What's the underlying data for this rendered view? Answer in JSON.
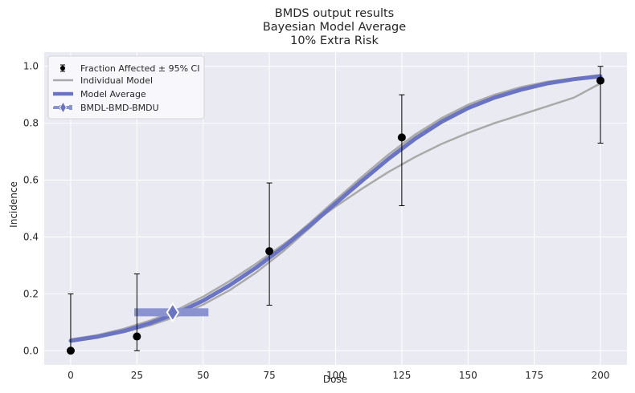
{
  "chart_data": {
    "type": "line",
    "title": [
      "BMDS output results",
      "Bayesian Model Average",
      "10% Extra Risk"
    ],
    "xlabel": "Dose",
    "ylabel": "Incidence",
    "xlim": [
      -10,
      210
    ],
    "ylim": [
      -0.05,
      1.05
    ],
    "xticks": [
      0,
      25,
      50,
      75,
      100,
      125,
      150,
      175,
      200
    ],
    "yticks": [
      0.0,
      0.2,
      0.4,
      0.6,
      0.8,
      1.0
    ],
    "grid": true,
    "legend_position": "top-left",
    "legend": [
      "Fraction Affected ± 95% CI",
      "Individual Model",
      "Model Average",
      "BMDL-BMD-BMDU"
    ],
    "colors": {
      "background": "#eaeaf2",
      "grid": "#ffffff",
      "individual_model": "#aaaaaa",
      "model_average": "#6a74c2",
      "bmd_band": "#8a93d0",
      "points": "#000000"
    },
    "observed": {
      "name": "Fraction Affected ± 95% CI",
      "dose": [
        0,
        25,
        75,
        125,
        200
      ],
      "fraction": [
        0.0,
        0.05,
        0.35,
        0.75,
        0.95
      ],
      "ci_lower": [
        0.0,
        0.0,
        0.16,
        0.51,
        0.73
      ],
      "ci_upper": [
        0.2,
        0.27,
        0.59,
        0.9,
        1.0
      ]
    },
    "individual_models": [
      {
        "x": [
          0,
          10,
          20,
          30,
          40,
          50,
          60,
          70,
          80,
          90,
          100,
          110,
          120,
          130,
          140,
          150,
          160,
          170,
          180,
          190,
          200
        ],
        "y": [
          0.04,
          0.055,
          0.077,
          0.106,
          0.143,
          0.19,
          0.245,
          0.306,
          0.372,
          0.44,
          0.507,
          0.57,
          0.629,
          0.681,
          0.727,
          0.766,
          0.8,
          0.83,
          0.86,
          0.89,
          0.94
        ]
      },
      {
        "x": [
          0,
          10,
          20,
          30,
          40,
          50,
          60,
          70,
          80,
          90,
          100,
          110,
          120,
          130,
          140,
          150,
          160,
          170,
          180,
          190,
          200
        ],
        "y": [
          0.035,
          0.049,
          0.069,
          0.095,
          0.13,
          0.175,
          0.23,
          0.295,
          0.368,
          0.447,
          0.53,
          0.612,
          0.69,
          0.76,
          0.818,
          0.865,
          0.9,
          0.927,
          0.946,
          0.958,
          0.97
        ]
      },
      {
        "x": [
          0,
          10,
          20,
          30,
          40,
          50,
          60,
          70,
          80,
          90,
          100,
          110,
          120,
          130,
          140,
          150,
          160,
          170,
          180,
          190,
          200
        ],
        "y": [
          0.035,
          0.047,
          0.065,
          0.089,
          0.121,
          0.162,
          0.213,
          0.275,
          0.348,
          0.43,
          0.515,
          0.6,
          0.68,
          0.752,
          0.812,
          0.86,
          0.897,
          0.925,
          0.945,
          0.958,
          0.968
        ]
      }
    ],
    "model_average": {
      "name": "Model Average",
      "x": [
        0,
        10,
        20,
        30,
        40,
        50,
        60,
        70,
        80,
        90,
        100,
        110,
        120,
        130,
        140,
        150,
        160,
        170,
        180,
        190,
        200
      ],
      "y": [
        0.035,
        0.049,
        0.069,
        0.097,
        0.132,
        0.176,
        0.23,
        0.292,
        0.362,
        0.438,
        0.518,
        0.598,
        0.675,
        0.745,
        0.805,
        0.853,
        0.89,
        0.918,
        0.94,
        0.955,
        0.965
      ]
    },
    "bmd": {
      "name": "BMDL-BMD-BMDU",
      "bmdl": 24,
      "bmd": 38.5,
      "bmdu": 52,
      "response": 0.135
    }
  }
}
